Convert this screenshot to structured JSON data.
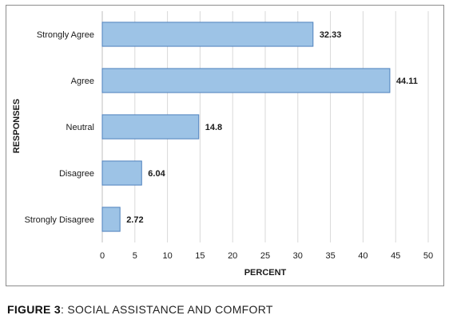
{
  "chart_data": {
    "type": "bar",
    "orientation": "horizontal",
    "categories": [
      "Strongly Agree",
      "Agree",
      "Neutral",
      "Disagree",
      "Strongly Disagree"
    ],
    "values": [
      32.33,
      44.11,
      14.8,
      6.04,
      2.72
    ],
    "data_labels": [
      "32.33",
      "44.11",
      "14.8",
      "6.04",
      "2.72"
    ],
    "xlabel": "PERCENT",
    "ylabel": "RESPONSES",
    "xlim": [
      0,
      50
    ],
    "x_ticks": [
      0,
      5,
      10,
      15,
      20,
      25,
      30,
      35,
      40,
      45,
      50
    ],
    "grid": true,
    "legend": false,
    "bar_color": "#9dc3e6",
    "bar_edge_color": "#4f81bd"
  },
  "caption": {
    "figure_number": "FIGURE 3",
    "text": ":  SOCIAL ASSISTANCE AND COMFORT"
  }
}
